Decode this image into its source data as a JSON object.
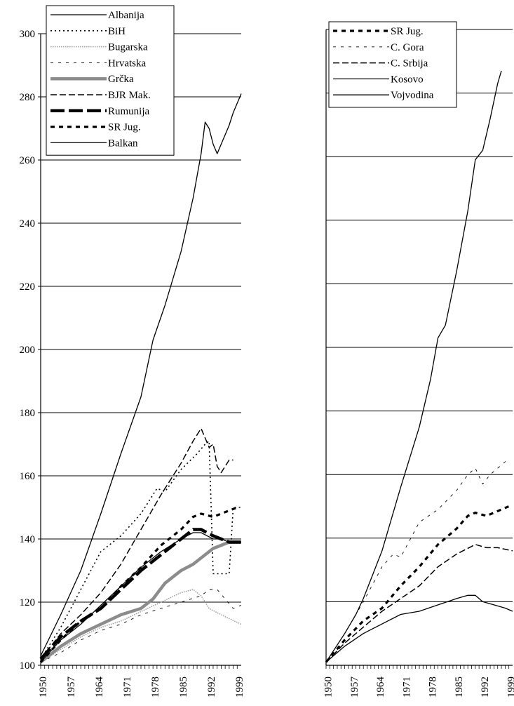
{
  "chart_data": [
    {
      "type": "line",
      "ylim": [
        100,
        300
      ],
      "yticks": [
        100,
        120,
        140,
        160,
        180,
        200,
        220,
        240,
        260,
        280,
        300
      ],
      "xlim": [
        1950,
        2000
      ],
      "xticks": [
        1950,
        1957,
        1964,
        1971,
        1978,
        1985,
        1992,
        1999
      ],
      "grid": "horizontal",
      "legend_position": "top-left",
      "series": [
        {
          "name": "Albanija",
          "style": "solid-thin",
          "points": [
            [
              1950,
              103
            ],
            [
              1955,
              116
            ],
            [
              1960,
              130
            ],
            [
              1965,
              148
            ],
            [
              1970,
              167
            ],
            [
              1975,
              185
            ],
            [
              1978,
              203
            ],
            [
              1981,
              214
            ],
            [
              1985,
              231
            ],
            [
              1988,
              248
            ],
            [
              1990,
              262
            ],
            [
              1991,
              272
            ],
            [
              1992,
              270
            ],
            [
              1993,
              265
            ],
            [
              1994,
              262
            ],
            [
              1995,
              265
            ],
            [
              1996,
              268
            ],
            [
              1997,
              271
            ],
            [
              1998,
              275
            ],
            [
              1999,
              278
            ],
            [
              2000,
              281
            ]
          ]
        },
        {
          "name": "BiH",
          "style": "dotted",
          "points": [
            [
              1950,
              102
            ],
            [
              1955,
              112
            ],
            [
              1960,
              124
            ],
            [
              1965,
              136
            ],
            [
              1970,
              141
            ],
            [
              1975,
              148
            ],
            [
              1979,
              156
            ],
            [
              1981,
              155
            ],
            [
              1985,
              162
            ],
            [
              1989,
              167
            ],
            [
              1991,
              170
            ],
            [
              1992,
              171
            ],
            [
              1993,
              129
            ],
            [
              1995,
              129
            ],
            [
              1997,
              129
            ],
            [
              1998,
              150
            ],
            [
              2000,
              150
            ]
          ]
        },
        {
          "name": "Bugarska",
          "style": "dotted-grey",
          "points": [
            [
              1950,
              101
            ],
            [
              1955,
              105
            ],
            [
              1960,
              109
            ],
            [
              1965,
              112
            ],
            [
              1970,
              114
            ],
            [
              1975,
              117
            ],
            [
              1980,
              120
            ],
            [
              1985,
              123
            ],
            [
              1988,
              124
            ],
            [
              1990,
              122
            ],
            [
              1992,
              118
            ],
            [
              1995,
              116
            ],
            [
              2000,
              113
            ]
          ]
        },
        {
          "name": "Hrvatska",
          "style": "dashed-thin",
          "points": [
            [
              1950,
              101
            ],
            [
              1955,
              104
            ],
            [
              1960,
              108
            ],
            [
              1965,
              111
            ],
            [
              1970,
              113
            ],
            [
              1975,
              116
            ],
            [
              1980,
              118
            ],
            [
              1985,
              120
            ],
            [
              1990,
              122
            ],
            [
              1992,
              124
            ],
            [
              1994,
              124
            ],
            [
              1996,
              121
            ],
            [
              1998,
              118
            ],
            [
              2000,
              119
            ]
          ]
        },
        {
          "name": "Grčka",
          "style": "solid-thick-grey",
          "points": [
            [
              1950,
              101
            ],
            [
              1955,
              106
            ],
            [
              1960,
              110
            ],
            [
              1965,
              113
            ],
            [
              1970,
              116
            ],
            [
              1975,
              118
            ],
            [
              1978,
              121
            ],
            [
              1981,
              126
            ],
            [
              1985,
              130
            ],
            [
              1988,
              132
            ],
            [
              1990,
              134
            ],
            [
              1993,
              137
            ],
            [
              1995,
              138
            ],
            [
              1997,
              139
            ],
            [
              2000,
              139
            ]
          ]
        },
        {
          "name": "BJR Mak.",
          "style": "dashed",
          "points": [
            [
              1950,
              102
            ],
            [
              1955,
              110
            ],
            [
              1960,
              116
            ],
            [
              1965,
              123
            ],
            [
              1970,
              132
            ],
            [
              1975,
              143
            ],
            [
              1980,
              154
            ],
            [
              1985,
              164
            ],
            [
              1988,
              171
            ],
            [
              1990,
              175
            ],
            [
              1991,
              172
            ],
            [
              1992,
              169
            ],
            [
              1993,
              170
            ],
            [
              1994,
              163
            ],
            [
              1995,
              161
            ],
            [
              1996,
              163
            ],
            [
              1997,
              165
            ],
            [
              1998,
              165
            ]
          ]
        },
        {
          "name": "Rumunija",
          "style": "dashed-thick",
          "points": [
            [
              1950,
              102
            ],
            [
              1955,
              109
            ],
            [
              1960,
              114
            ],
            [
              1965,
              118
            ],
            [
              1970,
              124
            ],
            [
              1975,
              130
            ],
            [
              1980,
              135
            ],
            [
              1985,
              140
            ],
            [
              1988,
              143
            ],
            [
              1990,
              143
            ],
            [
              1993,
              141
            ],
            [
              1995,
              140
            ],
            [
              1997,
              139
            ],
            [
              2000,
              139
            ]
          ]
        },
        {
          "name": "SR Jug.",
          "style": "dashed-bold",
          "points": [
            [
              1950,
              101
            ],
            [
              1955,
              108
            ],
            [
              1960,
              114
            ],
            [
              1965,
              118
            ],
            [
              1970,
              125
            ],
            [
              1975,
              131
            ],
            [
              1980,
              138
            ],
            [
              1985,
              143
            ],
            [
              1988,
              147
            ],
            [
              1990,
              148
            ],
            [
              1993,
              147
            ],
            [
              1995,
              148
            ],
            [
              1997,
              149
            ],
            [
              1999,
              150
            ]
          ]
        },
        {
          "name": "Balkan",
          "style": "solid-thin",
          "points": [
            [
              1950,
              101
            ],
            [
              1955,
              108
            ],
            [
              1960,
              113
            ],
            [
              1965,
              119
            ],
            [
              1970,
              125
            ],
            [
              1975,
              131
            ],
            [
              1980,
              136
            ],
            [
              1985,
              140
            ],
            [
              1988,
              142
            ],
            [
              1990,
              142
            ],
            [
              1993,
              140
            ],
            [
              1995,
              140
            ],
            [
              1997,
              139
            ],
            [
              2000,
              139
            ]
          ]
        }
      ]
    },
    {
      "type": "line",
      "ylim": [
        100,
        300
      ],
      "yticks": [
        100,
        120,
        140,
        160,
        180,
        200,
        220,
        240,
        260,
        280,
        300
      ],
      "xlim": [
        1950,
        2000
      ],
      "xticks": [
        1950,
        1957,
        1964,
        1971,
        1978,
        1985,
        1992,
        1999
      ],
      "grid": "horizontal",
      "legend_position": "top-left",
      "series": [
        {
          "name": "SR Jug.",
          "style": "dashed-bold",
          "points": [
            [
              1950,
              101
            ],
            [
              1955,
              108
            ],
            [
              1960,
              114
            ],
            [
              1965,
              118
            ],
            [
              1970,
              125
            ],
            [
              1975,
              131
            ],
            [
              1980,
              138
            ],
            [
              1985,
              143
            ],
            [
              1988,
              147
            ],
            [
              1990,
              148
            ],
            [
              1993,
              147
            ],
            [
              1995,
              148
            ],
            [
              1997,
              149
            ],
            [
              1999,
              150
            ]
          ]
        },
        {
          "name": "C. Gora",
          "style": "dashed-thin",
          "points": [
            [
              1950,
              101
            ],
            [
              1955,
              110
            ],
            [
              1960,
              120
            ],
            [
              1965,
              131
            ],
            [
              1968,
              135
            ],
            [
              1970,
              134
            ],
            [
              1975,
              145
            ],
            [
              1980,
              149
            ],
            [
              1985,
              155
            ],
            [
              1988,
              160
            ],
            [
              1990,
              162
            ],
            [
              1992,
              157
            ],
            [
              1994,
              160
            ],
            [
              1997,
              163
            ],
            [
              1999,
              165
            ]
          ]
        },
        {
          "name": "C. Srbija",
          "style": "dashed",
          "points": [
            [
              1950,
              101
            ],
            [
              1955,
              107
            ],
            [
              1960,
              112
            ],
            [
              1965,
              117
            ],
            [
              1970,
              121
            ],
            [
              1975,
              125
            ],
            [
              1980,
              131
            ],
            [
              1985,
              135
            ],
            [
              1990,
              138
            ],
            [
              1993,
              137
            ],
            [
              1996,
              137
            ],
            [
              2000,
              136
            ]
          ]
        },
        {
          "name": "Kosovo",
          "style": "solid-thin",
          "points": [
            [
              1950,
              101
            ],
            [
              1955,
              110
            ],
            [
              1958,
              116
            ],
            [
              1960,
              121
            ],
            [
              1965,
              136
            ],
            [
              1970,
              156
            ],
            [
              1975,
              175
            ],
            [
              1978,
              190
            ],
            [
              1980,
              203
            ],
            [
              1982,
              207
            ],
            [
              1985,
              224
            ],
            [
              1988,
              243
            ],
            [
              1990,
              259
            ],
            [
              1992,
              262
            ],
            [
              1994,
              272
            ],
            [
              1996,
              283
            ],
            [
              1997,
              287
            ]
          ]
        },
        {
          "name": "Vojvodina",
          "style": "solid-thin",
          "points": [
            [
              1950,
              101
            ],
            [
              1955,
              106
            ],
            [
              1960,
              110
            ],
            [
              1965,
              113
            ],
            [
              1970,
              116
            ],
            [
              1975,
              117
            ],
            [
              1980,
              119
            ],
            [
              1985,
              121
            ],
            [
              1988,
              122
            ],
            [
              1990,
              122
            ],
            [
              1992,
              120
            ],
            [
              1995,
              119
            ],
            [
              1998,
              118
            ],
            [
              2000,
              117
            ]
          ]
        }
      ]
    }
  ]
}
